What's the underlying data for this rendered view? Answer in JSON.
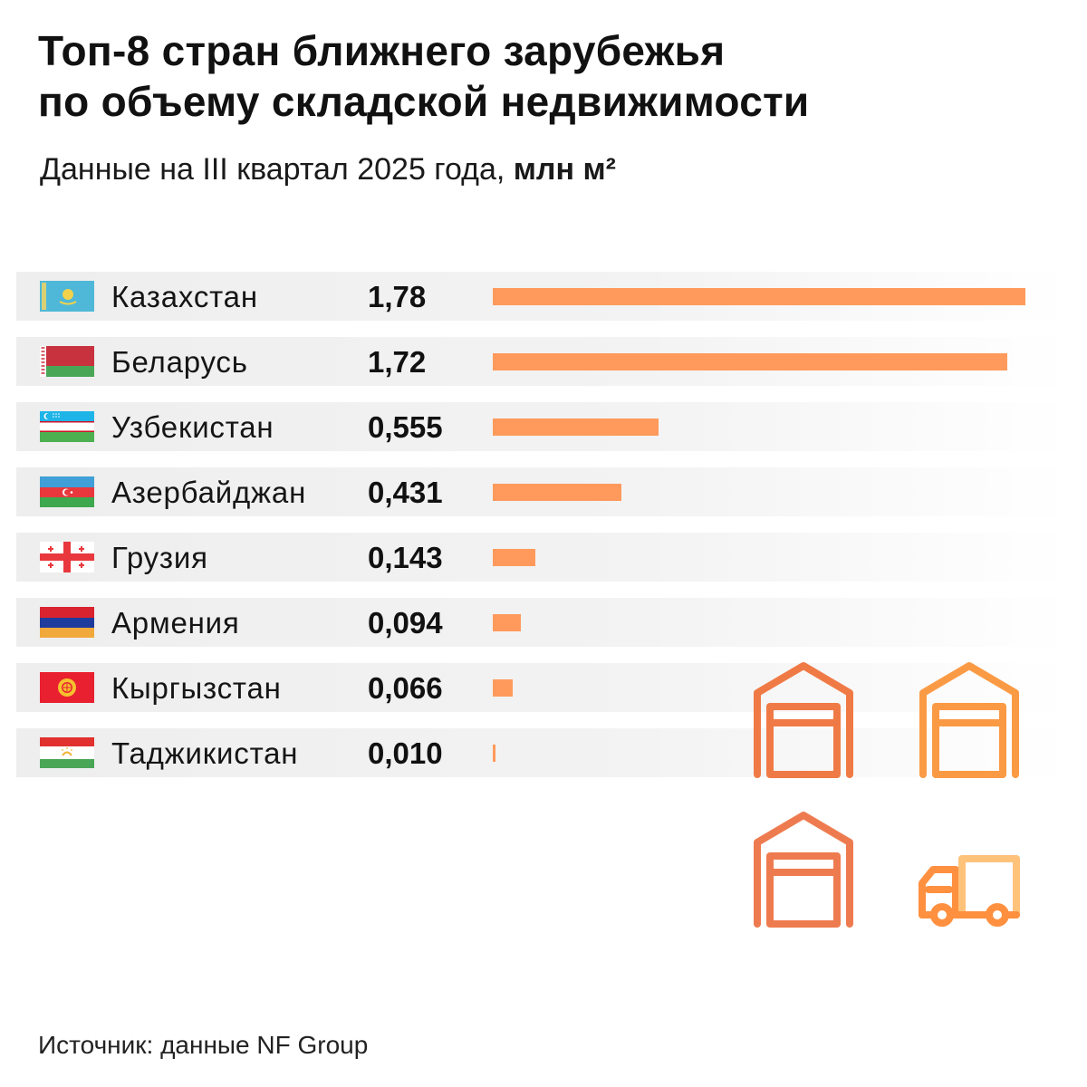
{
  "title_lines": [
    "Топ-8 стран ближнего зарубежья",
    "по объему складской недвижимости"
  ],
  "subtitle": {
    "text": "Данные на III квартал 2025 года, ",
    "unit": "млн м²"
  },
  "source": "Источник: данные NF Group",
  "colors": {
    "bar": "#ff9a5c",
    "illustration_start": "#f07a45",
    "illustration_end": "#ffb35a"
  },
  "chart_data": {
    "type": "bar",
    "orientation": "horizontal",
    "title": "Топ-8 стран ближнего зарубежья по объему складской недвижимости",
    "subtitle": "Данные на III квартал 2025 года, млн м²",
    "xlabel": "",
    "ylabel": "",
    "xlim": [
      0,
      1.78
    ],
    "categories": [
      "Казахстан",
      "Беларусь",
      "Узбекистан",
      "Азербайджан",
      "Грузия",
      "Армения",
      "Кыргызстан",
      "Таджикистан"
    ],
    "values": [
      1.78,
      1.72,
      0.555,
      0.431,
      0.143,
      0.094,
      0.066,
      0.01
    ],
    "labels": [
      "1,78",
      "1,72",
      "0,555",
      "0,431",
      "0,143",
      "0,094",
      "0,066",
      "0,010"
    ],
    "flags": [
      "kazakhstan-flag-icon",
      "belarus-flag-icon",
      "uzbekistan-flag-icon",
      "azerbaijan-flag-icon",
      "georgia-flag-icon",
      "armenia-flag-icon",
      "kyrgyzstan-flag-icon",
      "tajikistan-flag-icon"
    ]
  }
}
